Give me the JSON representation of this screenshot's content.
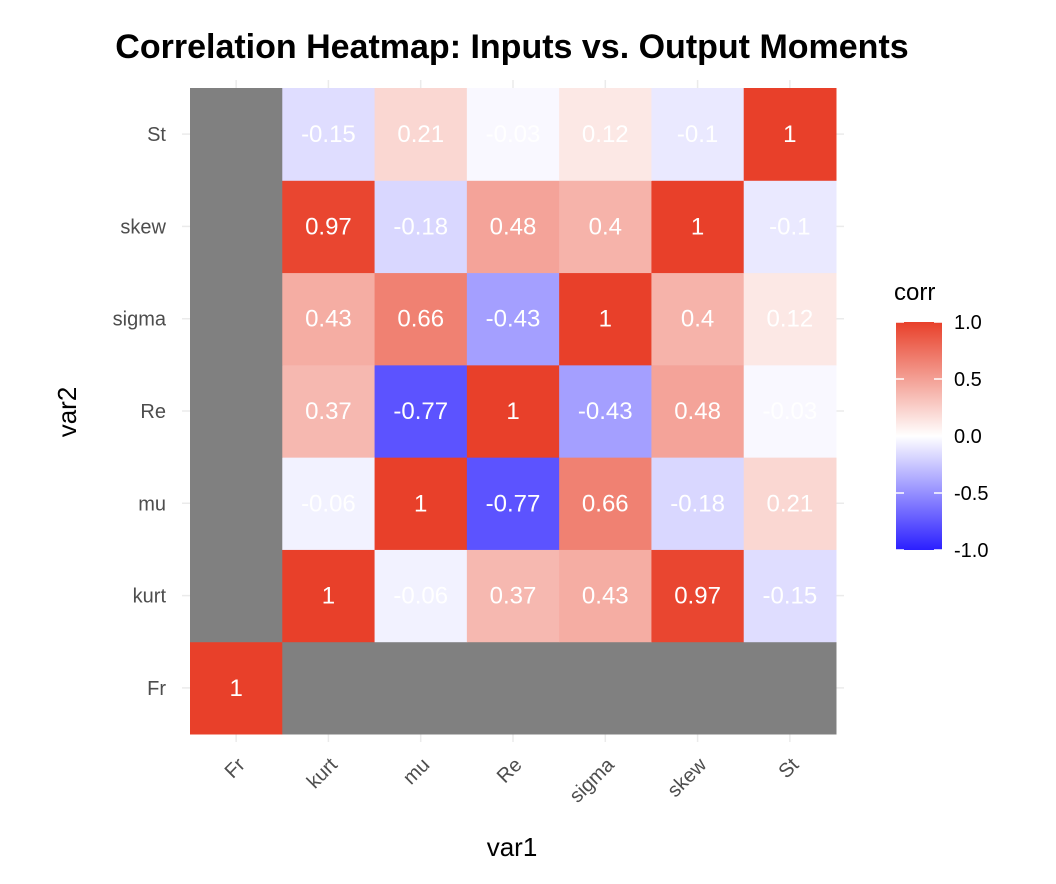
{
  "chart_data": {
    "type": "heatmap",
    "title": "Correlation Heatmap: Inputs vs. Output Moments",
    "xlabel": "var1",
    "ylabel": "var2",
    "x_categories": [
      "Fr",
      "kurt",
      "mu",
      "Re",
      "sigma",
      "skew",
      "St"
    ],
    "y_categories": [
      "Fr",
      "kurt",
      "mu",
      "Re",
      "sigma",
      "skew",
      "St"
    ],
    "cells": [
      {
        "x": "Fr",
        "y": "Fr",
        "value": 1
      },
      {
        "x": "kurt",
        "y": "kurt",
        "value": 1
      },
      {
        "x": "mu",
        "y": "kurt",
        "value": -0.06
      },
      {
        "x": "Re",
        "y": "kurt",
        "value": 0.37
      },
      {
        "x": "sigma",
        "y": "kurt",
        "value": 0.43
      },
      {
        "x": "skew",
        "y": "kurt",
        "value": 0.97
      },
      {
        "x": "St",
        "y": "kurt",
        "value": -0.15
      },
      {
        "x": "kurt",
        "y": "mu",
        "value": -0.06
      },
      {
        "x": "mu",
        "y": "mu",
        "value": 1
      },
      {
        "x": "Re",
        "y": "mu",
        "value": -0.77
      },
      {
        "x": "sigma",
        "y": "mu",
        "value": 0.66
      },
      {
        "x": "skew",
        "y": "mu",
        "value": -0.18
      },
      {
        "x": "St",
        "y": "mu",
        "value": 0.21
      },
      {
        "x": "kurt",
        "y": "Re",
        "value": 0.37
      },
      {
        "x": "mu",
        "y": "Re",
        "value": -0.77
      },
      {
        "x": "Re",
        "y": "Re",
        "value": 1
      },
      {
        "x": "sigma",
        "y": "Re",
        "value": -0.43
      },
      {
        "x": "skew",
        "y": "Re",
        "value": 0.48
      },
      {
        "x": "St",
        "y": "Re",
        "value": -0.03
      },
      {
        "x": "kurt",
        "y": "sigma",
        "value": 0.43
      },
      {
        "x": "mu",
        "y": "sigma",
        "value": 0.66
      },
      {
        "x": "Re",
        "y": "sigma",
        "value": -0.43
      },
      {
        "x": "sigma",
        "y": "sigma",
        "value": 1
      },
      {
        "x": "skew",
        "y": "sigma",
        "value": 0.4
      },
      {
        "x": "St",
        "y": "sigma",
        "value": 0.12
      },
      {
        "x": "kurt",
        "y": "skew",
        "value": 0.97
      },
      {
        "x": "mu",
        "y": "skew",
        "value": -0.18
      },
      {
        "x": "Re",
        "y": "skew",
        "value": 0.48
      },
      {
        "x": "sigma",
        "y": "skew",
        "value": 0.4
      },
      {
        "x": "skew",
        "y": "skew",
        "value": 1
      },
      {
        "x": "St",
        "y": "skew",
        "value": -0.1
      },
      {
        "x": "kurt",
        "y": "St",
        "value": -0.15
      },
      {
        "x": "mu",
        "y": "St",
        "value": 0.21
      },
      {
        "x": "Re",
        "y": "St",
        "value": -0.03
      },
      {
        "x": "sigma",
        "y": "St",
        "value": 0.12
      },
      {
        "x": "skew",
        "y": "St",
        "value": -0.1
      },
      {
        "x": "St",
        "y": "St",
        "value": 1
      }
    ],
    "na_color": "#808080",
    "color_scale": {
      "low": "#2b1fff",
      "mid": "#ffffff",
      "high": "#e8402a",
      "limits": [
        -1,
        1
      ]
    },
    "legend": {
      "title": "corr",
      "ticks": [
        "1.0",
        "0.5",
        "0.0",
        "-0.5",
        "-1.0"
      ],
      "tick_values": [
        1,
        0.5,
        0,
        -0.5,
        -1
      ],
      "position": "right"
    },
    "grid": true
  }
}
